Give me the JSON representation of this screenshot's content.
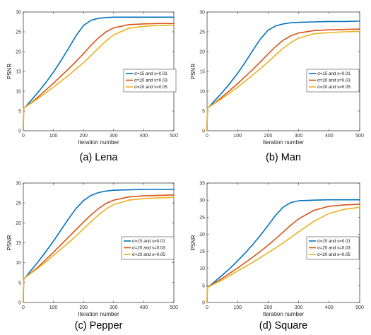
{
  "chart_data": [
    {
      "type": "line",
      "caption": "(a) Lena",
      "xlabel": "Iteration number",
      "ylabel": "PSNR",
      "xlim": [
        0,
        500
      ],
      "ylim": [
        0,
        30
      ],
      "xticks": [
        0,
        100,
        200,
        300,
        400,
        500
      ],
      "yticks": [
        0,
        5,
        10,
        15,
        20,
        25,
        30
      ],
      "grid": false,
      "legend": "right",
      "series": [
        {
          "name": "σ=15 and s=0.01",
          "color": "#0072BD",
          "x": [
            0,
            1,
            2,
            5,
            10,
            25,
            50,
            75,
            100,
            125,
            150,
            175,
            200,
            225,
            250,
            275,
            300,
            350,
            400,
            450,
            500
          ],
          "y": [
            0,
            5.5,
            5.8,
            5.9,
            6.3,
            7.6,
            9.8,
            12.2,
            14.8,
            17.7,
            20.8,
            24.0,
            26.6,
            27.9,
            28.4,
            28.6,
            28.7,
            28.7,
            28.7,
            28.7,
            28.7
          ]
        },
        {
          "name": "σ=20 and s=0.03",
          "color": "#D95319",
          "x": [
            0,
            1,
            2,
            5,
            10,
            25,
            50,
            75,
            100,
            125,
            150,
            175,
            200,
            225,
            250,
            275,
            300,
            350,
            400,
            450,
            500
          ],
          "y": [
            0,
            5.5,
            5.8,
            5.9,
            6.2,
            7.0,
            8.6,
            10.3,
            12.0,
            13.8,
            15.6,
            17.5,
            19.5,
            21.6,
            23.5,
            25.0,
            26.0,
            26.8,
            27.0,
            27.1,
            27.1
          ]
        },
        {
          "name": "σ=20 and s=0.05",
          "color": "#EDB120",
          "x": [
            0,
            1,
            2,
            5,
            10,
            25,
            50,
            75,
            100,
            125,
            150,
            175,
            200,
            225,
            250,
            275,
            300,
            350,
            400,
            450,
            500
          ],
          "y": [
            0,
            5.5,
            5.8,
            5.9,
            6.2,
            6.9,
            8.2,
            9.6,
            11.0,
            12.5,
            14.0,
            15.6,
            17.2,
            19.0,
            20.9,
            22.7,
            24.2,
            25.9,
            26.4,
            26.6,
            26.7
          ]
        }
      ]
    },
    {
      "type": "line",
      "caption": "(b) Man",
      "xlabel": "Iteration number",
      "ylabel": "PSNR",
      "xlim": [
        0,
        500
      ],
      "ylim": [
        0,
        30
      ],
      "xticks": [
        0,
        100,
        200,
        300,
        400,
        500
      ],
      "yticks": [
        0,
        5,
        10,
        15,
        20,
        25,
        30
      ],
      "grid": false,
      "legend": "right",
      "series": [
        {
          "name": "σ=15 and s=0.01",
          "color": "#0072BD",
          "x": [
            0,
            1,
            2,
            5,
            10,
            25,
            50,
            75,
            100,
            125,
            150,
            175,
            200,
            225,
            250,
            275,
            300,
            350,
            400,
            450,
            500
          ],
          "y": [
            0,
            5.5,
            5.8,
            5.9,
            6.3,
            7.6,
            9.7,
            12.0,
            14.5,
            17.3,
            20.3,
            23.2,
            25.4,
            26.5,
            27.0,
            27.3,
            27.4,
            27.5,
            27.6,
            27.6,
            27.7
          ]
        },
        {
          "name": "σ=20 and s=0.03",
          "color": "#D95319",
          "x": [
            0,
            1,
            2,
            5,
            10,
            25,
            50,
            75,
            100,
            125,
            150,
            175,
            200,
            225,
            250,
            275,
            300,
            350,
            400,
            450,
            500
          ],
          "y": [
            0,
            5.5,
            5.8,
            5.9,
            6.2,
            7.0,
            8.6,
            10.2,
            11.9,
            13.7,
            15.5,
            17.4,
            19.4,
            21.3,
            22.9,
            24.0,
            24.7,
            25.3,
            25.5,
            25.6,
            25.7
          ]
        },
        {
          "name": "σ=20 and s=0.05",
          "color": "#EDB120",
          "x": [
            0,
            1,
            2,
            5,
            10,
            25,
            50,
            75,
            100,
            125,
            150,
            175,
            200,
            225,
            250,
            275,
            300,
            350,
            400,
            450,
            500
          ],
          "y": [
            0,
            5.5,
            5.8,
            5.9,
            6.2,
            6.9,
            8.2,
            9.6,
            11.0,
            12.5,
            14.1,
            15.7,
            17.4,
            19.2,
            20.9,
            22.3,
            23.4,
            24.5,
            24.8,
            25.0,
            25.1
          ]
        }
      ]
    },
    {
      "type": "line",
      "caption": "(c) Pepper",
      "xlabel": "Iteration number",
      "ylabel": "PSNR",
      "xlim": [
        0,
        500
      ],
      "ylim": [
        0,
        30
      ],
      "xticks": [
        0,
        100,
        200,
        300,
        400,
        500
      ],
      "yticks": [
        0,
        5,
        10,
        15,
        20,
        25,
        30
      ],
      "grid": false,
      "legend": "bottom-right",
      "series": [
        {
          "name": "σ=15 and s=0.01",
          "color": "#0072BD",
          "x": [
            0,
            1,
            2,
            5,
            10,
            25,
            50,
            75,
            100,
            125,
            150,
            175,
            200,
            225,
            250,
            275,
            300,
            350,
            400,
            450,
            500
          ],
          "y": [
            0,
            5.8,
            6.0,
            6.2,
            6.6,
            8.0,
            10.3,
            12.8,
            15.4,
            18.2,
            21.0,
            23.6,
            25.6,
            26.9,
            27.6,
            28.0,
            28.2,
            28.3,
            28.4,
            28.4,
            28.4
          ]
        },
        {
          "name": "σ=20 and s=0.03",
          "color": "#D95319",
          "x": [
            0,
            1,
            2,
            5,
            10,
            25,
            50,
            75,
            100,
            125,
            150,
            175,
            200,
            225,
            250,
            275,
            300,
            350,
            400,
            450,
            500
          ],
          "y": [
            0,
            5.8,
            6.0,
            6.2,
            6.5,
            7.4,
            9.0,
            10.8,
            12.6,
            14.5,
            16.4,
            18.3,
            20.2,
            22.0,
            23.6,
            24.9,
            25.7,
            26.5,
            26.8,
            26.9,
            27.0
          ]
        },
        {
          "name": "σ=20 and s=0.05",
          "color": "#EDB120",
          "x": [
            0,
            1,
            2,
            5,
            10,
            25,
            50,
            75,
            100,
            125,
            150,
            175,
            200,
            225,
            250,
            275,
            300,
            350,
            400,
            450,
            500
          ],
          "y": [
            0,
            5.8,
            6.0,
            6.2,
            6.5,
            7.3,
            8.7,
            10.2,
            11.8,
            13.4,
            15.0,
            16.7,
            18.5,
            20.3,
            22.0,
            23.5,
            24.6,
            25.7,
            26.1,
            26.3,
            26.4
          ]
        }
      ]
    },
    {
      "type": "line",
      "caption": "(d) Square",
      "xlabel": "Iteration number",
      "ylabel": "PSNR",
      "xlim": [
        0,
        500
      ],
      "ylim": [
        0,
        35
      ],
      "xticks": [
        0,
        100,
        200,
        300,
        400,
        500
      ],
      "yticks": [
        0,
        5,
        10,
        15,
        20,
        25,
        30,
        35
      ],
      "grid": false,
      "legend": "bottom-right",
      "series": [
        {
          "name": "σ=15 and s=0.01",
          "color": "#0072BD",
          "x": [
            0,
            1,
            2,
            5,
            10,
            25,
            50,
            75,
            100,
            125,
            150,
            175,
            200,
            225,
            250,
            275,
            300,
            350,
            400,
            450,
            500
          ],
          "y": [
            0,
            4.3,
            4.5,
            4.6,
            5.0,
            6.1,
            8.0,
            10.0,
            12.2,
            14.5,
            17.0,
            19.7,
            22.6,
            25.6,
            28.0,
            29.3,
            29.8,
            30.0,
            30.1,
            30.1,
            30.1
          ]
        },
        {
          "name": "σ=20 and s=0.03",
          "color": "#D95319",
          "x": [
            0,
            1,
            2,
            5,
            10,
            25,
            50,
            75,
            100,
            125,
            150,
            175,
            200,
            225,
            250,
            275,
            300,
            350,
            400,
            450,
            500
          ],
          "y": [
            0,
            4.3,
            4.5,
            4.6,
            4.9,
            5.7,
            7.1,
            8.6,
            10.1,
            11.7,
            13.3,
            15.0,
            16.8,
            18.7,
            20.7,
            22.7,
            24.5,
            27.0,
            28.2,
            28.6,
            28.8
          ]
        },
        {
          "name": "σ=20 and s=0.05",
          "color": "#EDB120",
          "x": [
            0,
            1,
            2,
            5,
            10,
            25,
            50,
            75,
            100,
            125,
            150,
            175,
            200,
            225,
            250,
            275,
            300,
            350,
            400,
            450,
            500
          ],
          "y": [
            0,
            4.3,
            4.5,
            4.6,
            4.8,
            5.5,
            6.6,
            7.9,
            9.2,
            10.5,
            11.8,
            13.2,
            14.6,
            16.0,
            17.5,
            19.1,
            20.7,
            23.8,
            26.1,
            27.3,
            27.9
          ]
        }
      ]
    }
  ]
}
